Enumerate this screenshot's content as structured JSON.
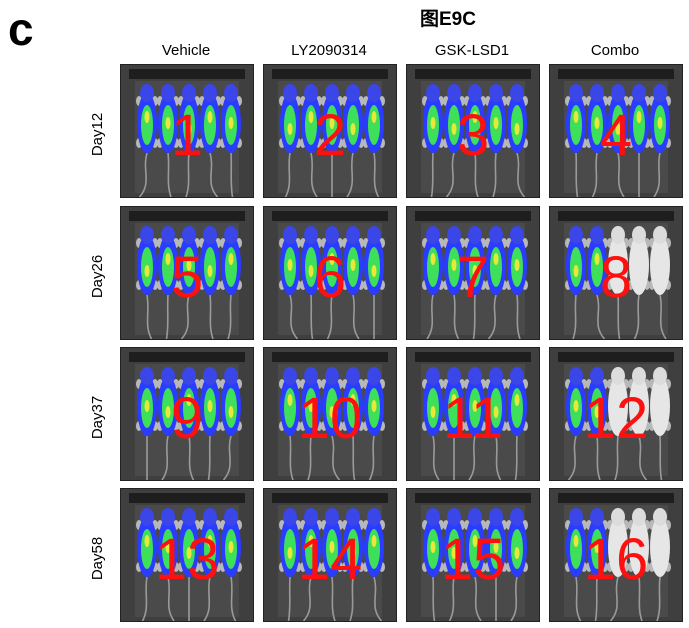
{
  "panel_letter": "c",
  "figure_title": "图E9C",
  "columns": [
    "Vehicle",
    "LY2090314",
    "GSK-LSD1",
    "Combo"
  ],
  "rows": [
    "Day12",
    "Day26",
    "Day37",
    "Day58"
  ],
  "tiles": [
    {
      "number": "1",
      "bright_mice": 0
    },
    {
      "number": "2",
      "bright_mice": 0
    },
    {
      "number": "3",
      "bright_mice": 0
    },
    {
      "number": "4",
      "bright_mice": 0
    },
    {
      "number": "5",
      "bright_mice": 0
    },
    {
      "number": "6",
      "bright_mice": 0
    },
    {
      "number": "7",
      "bright_mice": 0
    },
    {
      "number": "8",
      "bright_mice": 3
    },
    {
      "number": "9",
      "bright_mice": 0
    },
    {
      "number": "10",
      "bright_mice": 0
    },
    {
      "number": "11",
      "bright_mice": 0
    },
    {
      "number": "12",
      "bright_mice": 3
    },
    {
      "number": "13",
      "bright_mice": 0
    },
    {
      "number": "14",
      "bright_mice": 0
    },
    {
      "number": "15",
      "bright_mice": 0
    },
    {
      "number": "16",
      "bright_mice": 3
    }
  ],
  "colors": {
    "label_red": "#ff1010",
    "signal_blue": "#2a3cff",
    "signal_green": "#3ee05a",
    "signal_yellow": "#e8e83a",
    "background_gray": "#3f3f3f"
  }
}
